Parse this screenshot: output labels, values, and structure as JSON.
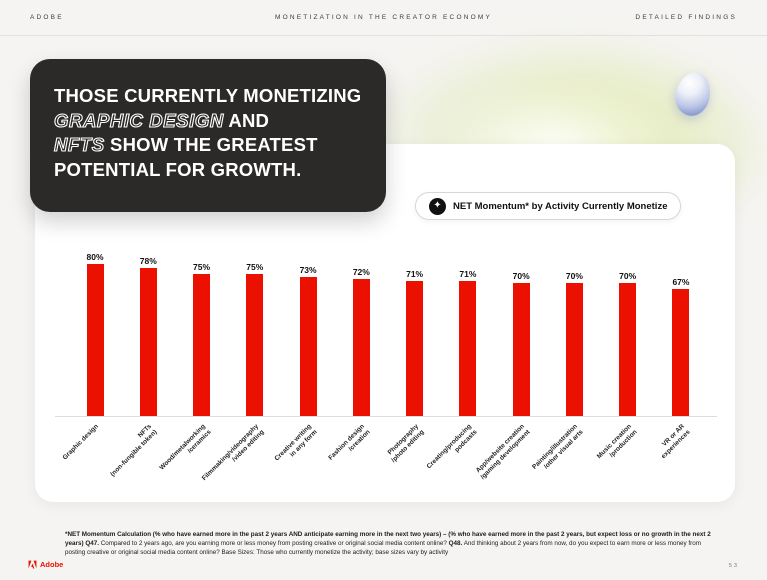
{
  "colors": {
    "accent_red": "#EB1000",
    "dark_box": "#2B2A28",
    "card_bg": "#FFFFFF",
    "page_bg": "#F5F4F2"
  },
  "header": {
    "brand": "ADOBE",
    "center": "MONETIZATION IN THE CREATOR ECONOMY",
    "right": "DETAILED FINDINGS"
  },
  "title": {
    "l1": "THOSE CURRENTLY MONETIZING",
    "l2_outline": "GRAPHIC DESIGN",
    "l2_rest": " AND",
    "l3_outline": "NFTS",
    "l3_rest": " SHOW THE GREATEST",
    "l4": "POTENTIAL FOR GROWTH."
  },
  "badge": {
    "icon_glyph": "✦",
    "label": "NET Momentum* by Activity Currently Monetize"
  },
  "chart_data": {
    "type": "bar",
    "title": "NET Momentum* by Activity Currently Monetize",
    "categories": [
      "Graphic design",
      "NFTs\n(non-fungible token)",
      "Wood/metalworking\n/ceramics",
      "Filmmaking/videography\n/video editing",
      "Creative writing\nin any form",
      "Fashion design\n/creation",
      "Photography\n/photo editing",
      "Creating/producing\npodcasts",
      "App/website creation\n/gaming development",
      "Painting/illustration\n/other visual arts",
      "Music creation\n/production",
      "VR or AR\nexperiences"
    ],
    "values": [
      80,
      78,
      75,
      75,
      73,
      72,
      71,
      71,
      70,
      70,
      70,
      67
    ],
    "value_suffix": "%",
    "bar_color": "#EB1000",
    "xlabel": "",
    "ylabel": "",
    "ylim": [
      0,
      85
    ],
    "grid": false,
    "legend": "none",
    "value_labels": "top"
  },
  "footnote": {
    "calculation_bold": "*NET Momentum Calculation (% who have earned more in the past 2 years AND anticipate earning more in the next two years) – (% who have earned more in the past 2 years, but expect loss or no growth in the next 2 years)",
    "q47_label": "Q47.",
    "q47_text": "Compared to 2 years ago, are you earning more or less money from posting creative or original social media content online?",
    "q48_label": "Q48.",
    "q48_text": "And thinking about 2 years from now, do you expect to earn more or less money from posting creative or original social media content online? Base Sizes: Those who currently monetize the activity; base sizes vary by activity"
  },
  "footer": {
    "brand": "Adobe",
    "page": "53"
  }
}
